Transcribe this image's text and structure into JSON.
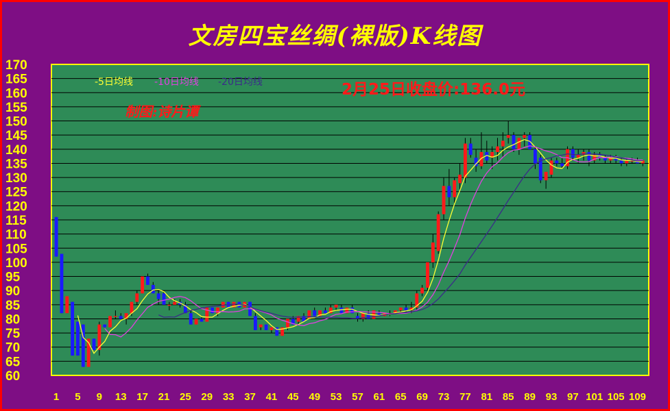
{
  "chart_data": {
    "type": "candlestick",
    "title": "文房四宝丝绸(裸版)K线图",
    "annotation": "2月25日收盘价:136.0元",
    "author": "制图:诗片谭",
    "legend": [
      {
        "label": "-5日均线",
        "color": "#ffff33"
      },
      {
        "label": "-10日均线",
        "color": "#e040e0"
      },
      {
        "label": "-20日均线",
        "color": "#3b2a8a"
      }
    ],
    "ylim": [
      60,
      170
    ],
    "yticks": [
      170,
      165,
      160,
      155,
      150,
      145,
      140,
      135,
      130,
      125,
      120,
      115,
      110,
      105,
      100,
      95,
      90,
      85,
      80,
      75,
      70,
      65,
      60
    ],
    "xtick_labels": [
      "1",
      "5",
      "9",
      "13",
      "17",
      "21",
      "25",
      "29",
      "33",
      "37",
      "41",
      "45",
      "49",
      "53",
      "57",
      "61",
      "65",
      "69",
      "73",
      "77",
      "81",
      "85",
      "89",
      "93",
      "97",
      "101",
      "105",
      "109"
    ],
    "colors": {
      "up": "#ff1a1a",
      "down": "#1a1aff",
      "plot_bg": "#2e8b57",
      "frame_bg": "#7e0e84",
      "axis": "#ffff00",
      "grid": "#000000"
    },
    "candles": [
      [
        116,
        116,
        102,
        102
      ],
      [
        103,
        103,
        82,
        82
      ],
      [
        82,
        88,
        82,
        88
      ],
      [
        86,
        86,
        67,
        67
      ],
      [
        79,
        79,
        67,
        67
      ],
      [
        78,
        78,
        63,
        63
      ],
      [
        63,
        73,
        63,
        73
      ],
      [
        73,
        73,
        69,
        69
      ],
      [
        69,
        79,
        67,
        78
      ],
      [
        78,
        78,
        77,
        77
      ],
      [
        77,
        81,
        77,
        81
      ],
      [
        81,
        83,
        80,
        81
      ],
      [
        81,
        82,
        80,
        80
      ],
      [
        80,
        82,
        78,
        82
      ],
      [
        82,
        86,
        81,
        86
      ],
      [
        86,
        90,
        85,
        89
      ],
      [
        89,
        95,
        89,
        95
      ],
      [
        95,
        96,
        92,
        92
      ],
      [
        92,
        93,
        89,
        89
      ],
      [
        89,
        90,
        85,
        87
      ],
      [
        89,
        90,
        85,
        85
      ],
      [
        85,
        86,
        83,
        85
      ],
      [
        85,
        87,
        85,
        86
      ],
      [
        86,
        87,
        84,
        85
      ],
      [
        85,
        86,
        82,
        82
      ],
      [
        82,
        83,
        78,
        78
      ],
      [
        78,
        80,
        78,
        80
      ],
      [
        80,
        81,
        79,
        79
      ],
      [
        79,
        84,
        79,
        84
      ],
      [
        84,
        84,
        82,
        82
      ],
      [
        82,
        84,
        81,
        84
      ],
      [
        84,
        86,
        84,
        86
      ],
      [
        86,
        86,
        84,
        84
      ],
      [
        84,
        86,
        84,
        86
      ],
      [
        86,
        86,
        84,
        84
      ],
      [
        84,
        86,
        84,
        86
      ],
      [
        86,
        86,
        81,
        81
      ],
      [
        81,
        82,
        76,
        76
      ],
      [
        77,
        78,
        76,
        78
      ],
      [
        78,
        78,
        76,
        76
      ],
      [
        76,
        77,
        75,
        77
      ],
      [
        77,
        77,
        74,
        74
      ],
      [
        74,
        77,
        74,
        77
      ],
      [
        77,
        80,
        76,
        80
      ],
      [
        80,
        81,
        78,
        78
      ],
      [
        79,
        81,
        78,
        81
      ],
      [
        81,
        82,
        79,
        79
      ],
      [
        80,
        83,
        80,
        83
      ],
      [
        83,
        84,
        81,
        81
      ],
      [
        81,
        83,
        81,
        83
      ],
      [
        83,
        84,
        82,
        82
      ],
      [
        82,
        85,
        82,
        84
      ],
      [
        84,
        85,
        83,
        85
      ],
      [
        84,
        85,
        82,
        82
      ],
      [
        82,
        84,
        82,
        84
      ],
      [
        84,
        85,
        82,
        82
      ],
      [
        81,
        82,
        79,
        80
      ],
      [
        80,
        82,
        79,
        82
      ],
      [
        82,
        83,
        80,
        80
      ],
      [
        80,
        83,
        80,
        83
      ],
      [
        82,
        83,
        81,
        81
      ],
      [
        81,
        82,
        81,
        82
      ],
      [
        82,
        83,
        81,
        82
      ],
      [
        82,
        83,
        82,
        83
      ],
      [
        83,
        84,
        82,
        84
      ],
      [
        84,
        85,
        82,
        83
      ],
      [
        83,
        86,
        82,
        84
      ],
      [
        84,
        90,
        83,
        89
      ],
      [
        89,
        92,
        88,
        91
      ],
      [
        91,
        100,
        90,
        100
      ],
      [
        100,
        110,
        98,
        107
      ],
      [
        104,
        118,
        103,
        117
      ],
      [
        117,
        130,
        115,
        127
      ],
      [
        127,
        133,
        120,
        123
      ],
      [
        123,
        130,
        121,
        129
      ],
      [
        128,
        135,
        125,
        131
      ],
      [
        130,
        144,
        128,
        142
      ],
      [
        142,
        144,
        137,
        138
      ],
      [
        137,
        140,
        132,
        134
      ],
      [
        134,
        146,
        133,
        139
      ],
      [
        139,
        143,
        135,
        136
      ],
      [
        137,
        141,
        133,
        139
      ],
      [
        139,
        144,
        136,
        141
      ],
      [
        141,
        146,
        137,
        143
      ],
      [
        144,
        150,
        142,
        145
      ],
      [
        145,
        146,
        139,
        140
      ],
      [
        140,
        144,
        138,
        144
      ],
      [
        144,
        146,
        141,
        145
      ],
      [
        145,
        146,
        140,
        140
      ],
      [
        140,
        141,
        133,
        135
      ],
      [
        137,
        138,
        128,
        129
      ],
      [
        129,
        132,
        126,
        132
      ],
      [
        131,
        137,
        130,
        136
      ],
      [
        136,
        137,
        134,
        135
      ],
      [
        135,
        137,
        133,
        134
      ],
      [
        134,
        141,
        133,
        140
      ],
      [
        140,
        141,
        136,
        137
      ],
      [
        137,
        140,
        135,
        138
      ],
      [
        138,
        140,
        136,
        139
      ],
      [
        139,
        140,
        134,
        136
      ],
      [
        136,
        139,
        135,
        138
      ],
      [
        138,
        139,
        136,
        137
      ],
      [
        137,
        138,
        135,
        136
      ],
      [
        136,
        138,
        135,
        137
      ],
      [
        137,
        138,
        135,
        136
      ],
      [
        136,
        137,
        134,
        135
      ],
      [
        135,
        137,
        134,
        136
      ],
      [
        136,
        137,
        135,
        136
      ],
      [
        136,
        137,
        135,
        135
      ],
      [
        135,
        136,
        134,
        136
      ]
    ]
  }
}
